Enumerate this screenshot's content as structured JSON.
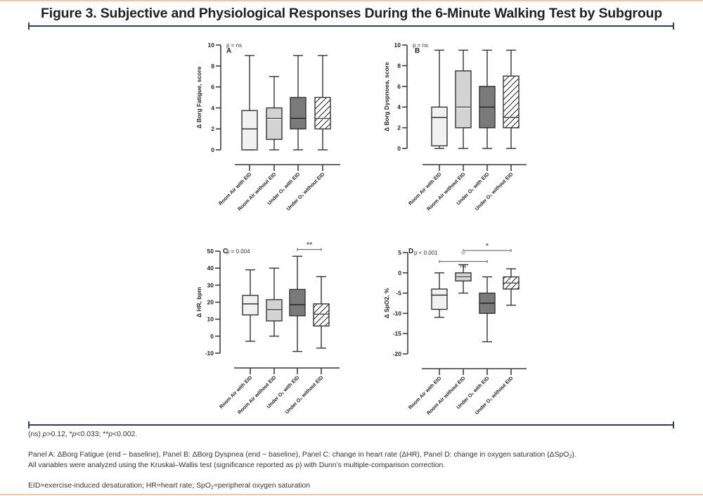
{
  "figure": {
    "title": "Figure 3. Subjective and Physiological Responses During the 6-Minute Walking Test by Subgroup",
    "colors": {
      "rule": "#2a3f66",
      "border": "#f6c6a8"
    }
  },
  "footnotes": {
    "significance": {
      "ns": "(ns) ",
      "p1": "p",
      "t1": ">0.12, *",
      "p2": "p",
      "t2": "<0.033; **",
      "p3": "p",
      "t3": "<0.002."
    },
    "panels_line_1_pre": "Panel A: ΔBorg Fatigue (end − baseline), Panel B: ΔBorg Dyspnea (end − baseline), Panel C: change in heart rate (ΔHR), Panel D: change in oxygen saturation (ΔSpO",
    "panels_line_1_sub": "2",
    "panels_line_1_post": ").",
    "panels_line_2": "All variables were analyzed using the Kruskal–Wallis test (significance reported as p) with Dunn’s multiple-comparison correction.",
    "abbrev_pre": "EID=exercise-induced desaturation; HR=heart rate; SpO",
    "abbrev_sub": "2",
    "abbrev_post": "=peripheral oxygen saturation"
  },
  "chart_data": [
    {
      "type": "box",
      "panel": "A",
      "ylabel": "Δ Borg Fatigue, score",
      "ylim": [
        0,
        10
      ],
      "yticks": [
        0,
        2,
        4,
        6,
        8,
        10
      ],
      "annotation": "p = ns",
      "categories": [
        "Room Air with EID",
        "Room Air without EID",
        "Under O₂ with EID",
        "Under O₂ without EID"
      ],
      "boxes": [
        {
          "min": 0,
          "q1": 0,
          "median": 2,
          "q3": 3.75,
          "max": 9
        },
        {
          "min": 0,
          "q1": 1,
          "median": 3,
          "q3": 4,
          "max": 7
        },
        {
          "min": 0,
          "q1": 2,
          "median": 3,
          "q3": 5,
          "max": 9
        },
        {
          "min": 0,
          "q1": 2,
          "median": 3,
          "q3": 5,
          "max": 9
        }
      ],
      "brackets": []
    },
    {
      "type": "box",
      "panel": "B",
      "ylabel": "Δ Borg Dyspnoea, score",
      "ylim": [
        0,
        10
      ],
      "yticks": [
        0,
        2,
        4,
        6,
        8,
        10
      ],
      "annotation": "p = ns",
      "categories": [
        "Room Air with EID",
        "Room Air without EID",
        "Under O₂ with EID",
        "Under O₂ without EID"
      ],
      "boxes": [
        {
          "min": 0,
          "q1": 0.25,
          "median": 3,
          "q3": 4,
          "max": 9.5
        },
        {
          "min": 0,
          "q1": 2,
          "median": 4,
          "q3": 7.5,
          "max": 9.5
        },
        {
          "min": 0,
          "q1": 2,
          "median": 4,
          "q3": 6,
          "max": 9.5
        },
        {
          "min": 0,
          "q1": 2,
          "median": 3,
          "q3": 7,
          "max": 9.5
        }
      ],
      "brackets": []
    },
    {
      "type": "box",
      "panel": "C",
      "ylabel": "Δ HR, bpm",
      "ylim": [
        -10,
        50
      ],
      "yticks": [
        -10,
        0,
        10,
        20,
        30,
        40,
        50
      ],
      "annotation": "p = 0.004",
      "categories": [
        "Room Air with EID",
        "Room Air without EID",
        "Under O₂ with EID",
        "Under O₂ without EID"
      ],
      "boxes": [
        {
          "min": -3,
          "q1": 12.5,
          "median": 19,
          "q3": 24,
          "max": 39
        },
        {
          "min": 0,
          "q1": 9,
          "median": 15.5,
          "q3": 21.5,
          "max": 40
        },
        {
          "min": -9,
          "q1": 12,
          "median": 18.5,
          "q3": 27.5,
          "max": 47
        },
        {
          "min": -7,
          "q1": 6,
          "median": 13,
          "q3": 19,
          "max": 35
        }
      ],
      "brackets": [
        {
          "from": 2,
          "to": 3,
          "y": 51,
          "label": "**"
        }
      ]
    },
    {
      "type": "box",
      "panel": "D",
      "ylabel": "Δ SpO2, %",
      "ylim": [
        -20,
        5
      ],
      "yticks": [
        -20,
        -15,
        -10,
        -5,
        0,
        5
      ],
      "annotation": "p < 0.001",
      "categories": [
        "Room Air with EID",
        "Room Air without EID",
        "Under O₂ with EID",
        "Under O₂ without EID"
      ],
      "boxes": [
        {
          "min": -11,
          "q1": -9,
          "median": -5.5,
          "q3": -4,
          "max": 0
        },
        {
          "min": -5,
          "q1": -2,
          "median": -1,
          "q3": 0,
          "max": 2
        },
        {
          "min": -17,
          "q1": -10,
          "median": -7.5,
          "q3": -5,
          "max": -1
        },
        {
          "min": -8,
          "q1": -4,
          "median": -2.5,
          "q3": -1,
          "max": 1
        }
      ],
      "brackets": [
        {
          "from": 0,
          "to": 2,
          "y": 2.8,
          "label": "ns"
        },
        {
          "from": 1,
          "to": 3,
          "y": 5.5,
          "label": "*"
        }
      ]
    }
  ]
}
